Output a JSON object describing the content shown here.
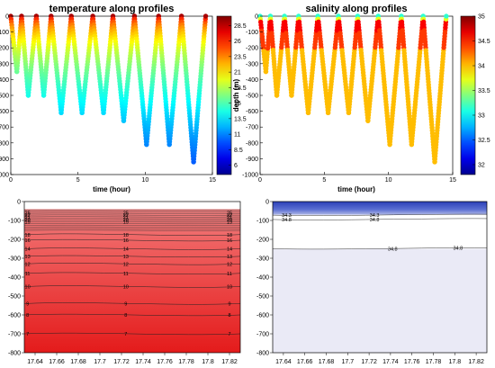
{
  "chart_data": [
    {
      "type": "scatter",
      "title": "temperature along profiles",
      "xlabel": "time (hour)",
      "ylabel": "depth (m)",
      "xlim": [
        0,
        15
      ],
      "ylim": [
        -1000,
        0
      ],
      "xticks": [
        "0",
        "5",
        "10",
        "15"
      ],
      "yticks": [
        "0",
        "-100",
        "-200",
        "-300",
        "-400",
        "-500",
        "-600",
        "-700",
        "-800",
        "-900",
        "-1000"
      ],
      "colorbar": {
        "min": 4.5,
        "max": 30,
        "ticks": [
          "28.5",
          "26",
          "23.5",
          "21",
          "18.5",
          "16",
          "13.5",
          "11",
          "8.5",
          "6"
        ]
      },
      "profiles": [
        {
          "start": 0.0,
          "bottom_time": 0.45,
          "end": 0.8,
          "max_depth": 350
        },
        {
          "start": 0.8,
          "bottom_time": 1.3,
          "end": 1.9,
          "max_depth": 500
        },
        {
          "start": 1.9,
          "bottom_time": 2.45,
          "end": 3.0,
          "max_depth": 500
        },
        {
          "start": 3.0,
          "bottom_time": 3.75,
          "end": 4.5,
          "max_depth": 610
        },
        {
          "start": 4.5,
          "bottom_time": 5.3,
          "end": 6.1,
          "max_depth": 610
        },
        {
          "start": 6.1,
          "bottom_time": 6.9,
          "end": 7.6,
          "max_depth": 610
        },
        {
          "start": 7.6,
          "bottom_time": 8.4,
          "end": 9.2,
          "max_depth": 660
        },
        {
          "start": 9.2,
          "bottom_time": 10.1,
          "end": 11.0,
          "max_depth": 810
        },
        {
          "start": 11.0,
          "bottom_time": 11.8,
          "end": 12.7,
          "max_depth": 810
        },
        {
          "start": 12.7,
          "bottom_time": 13.6,
          "end": 14.5,
          "max_depth": 920
        }
      ]
    },
    {
      "type": "scatter",
      "title": "salinity along profiles",
      "xlabel": "time (hour)",
      "ylabel": "depth (m)",
      "xlim": [
        0,
        15
      ],
      "ylim": [
        -1000,
        0
      ],
      "xticks": [
        "0",
        "5",
        "10",
        "15"
      ],
      "yticks": [
        "0",
        "-100",
        "-200",
        "-300",
        "-400",
        "-500",
        "-600",
        "-700",
        "-800",
        "-900",
        "-1000"
      ],
      "colorbar": {
        "min": 31.8,
        "max": 35,
        "ticks": [
          "35",
          "34.5",
          "34",
          "33.5",
          "33",
          "32.5",
          "32"
        ]
      }
    },
    {
      "type": "heatmap",
      "title": "",
      "xlim": [
        17.63,
        17.83
      ],
      "ylim": [
        -800,
        0
      ],
      "xticks": [
        "17.64",
        "17.66",
        "17.68",
        "17.7",
        "17.72",
        "17.74",
        "17.76",
        "17.78",
        "17.8",
        "17.82"
      ],
      "yticks": [
        "0",
        "-100",
        "-200",
        "-300",
        "-400",
        "-500",
        "-600",
        "-700",
        "-800"
      ],
      "contours": [
        {
          "level": "18",
          "depth": 175
        },
        {
          "level": "16",
          "depth": 205
        },
        {
          "level": "14",
          "depth": 250
        },
        {
          "level": "13",
          "depth": 290
        },
        {
          "level": "12",
          "depth": 330
        },
        {
          "level": "11",
          "depth": 380
        },
        {
          "level": "10",
          "depth": 450
        },
        {
          "level": "9",
          "depth": 540
        },
        {
          "level": "8",
          "depth": 600
        },
        {
          "level": "7",
          "depth": 700
        }
      ],
      "top_labels": [
        "25",
        "22",
        "21",
        "20",
        "19"
      ]
    },
    {
      "type": "heatmap",
      "title": "",
      "xlim": [
        17.63,
        17.83
      ],
      "ylim": [
        -800,
        0
      ],
      "xticks": [
        "17.64",
        "17.66",
        "17.68",
        "17.7",
        "17.72",
        "17.74",
        "17.76",
        "17.78",
        "17.8",
        "17.82"
      ],
      "yticks": [
        "0",
        "-100",
        "-200",
        "-300",
        "-400",
        "-500",
        "-600",
        "-700",
        "-800"
      ],
      "contours": [
        {
          "level": "34.3",
          "depth": 72
        },
        {
          "level": "34.8",
          "depth": 95
        },
        {
          "level": "34.8",
          "depth": 250
        }
      ]
    }
  ]
}
